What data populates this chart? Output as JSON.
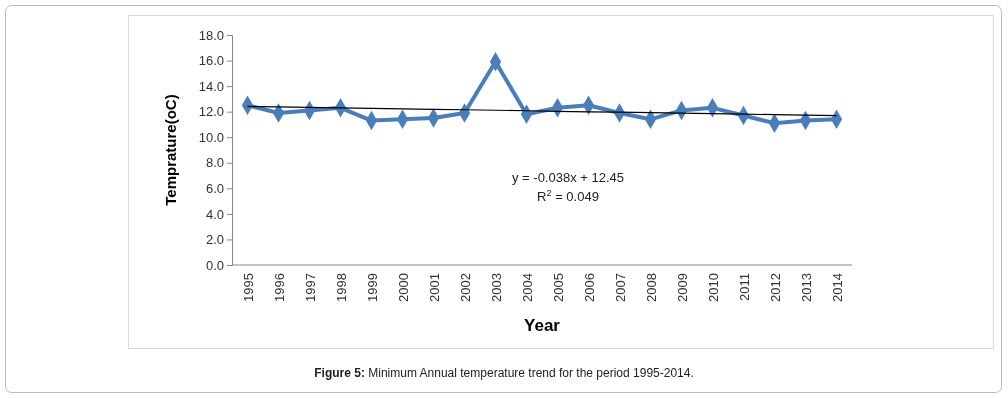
{
  "chart_data": {
    "type": "line",
    "xlabel": "Year",
    "ylabel": "Temprature(oC)",
    "categories": [
      "1995",
      "1996",
      "1997",
      "1998",
      "1999",
      "2000",
      "2001",
      "2002",
      "2003",
      "2004",
      "2005",
      "2006",
      "2007",
      "2008",
      "2009",
      "2010",
      "2011",
      "2012",
      "2013",
      "2014"
    ],
    "series": [
      {
        "color": "#4a7ebb",
        "values": [
          12.5,
          11.9,
          12.1,
          12.3,
          11.3,
          11.4,
          11.5,
          11.9,
          15.9,
          11.8,
          12.3,
          12.5,
          11.9,
          11.4,
          12.1,
          12.3,
          11.7,
          11.1,
          11.3,
          11.4
        ],
        "marker": "diamond"
      },
      {
        "type": "line",
        "color": "#000000",
        "values": [
          12.41,
          12.37,
          12.34,
          12.3,
          12.26,
          12.22,
          12.18,
          12.15,
          12.11,
          12.07,
          12.03,
          11.99,
          11.96,
          11.92,
          11.88,
          11.84,
          11.8,
          11.77,
          11.73,
          11.69
        ],
        "marker": "none",
        "line_style": "solid"
      }
    ],
    "ylim": [
      0,
      18
    ],
    "yticks": [
      {
        "value": 0,
        "label": "0.0"
      },
      {
        "value": 2,
        "label": "2.0"
      },
      {
        "value": 4,
        "label": "4.0"
      },
      {
        "value": 6,
        "label": "6.0"
      },
      {
        "value": 8,
        "label": "8.0"
      },
      {
        "value": 10,
        "label": "10.0"
      },
      {
        "value": 12,
        "label": "12.0"
      },
      {
        "value": 14,
        "label": "14.0"
      },
      {
        "value": 16,
        "label": "16.0"
      },
      {
        "value": 18,
        "label": "18.0"
      }
    ],
    "grid": false,
    "annotations": [
      "y = -0.038x + 12.45",
      "R$^{2}$ = 0.049",
      "Figure 5: Minimum Annual temperature trend for the period 1995-2014."
    ]
  }
}
